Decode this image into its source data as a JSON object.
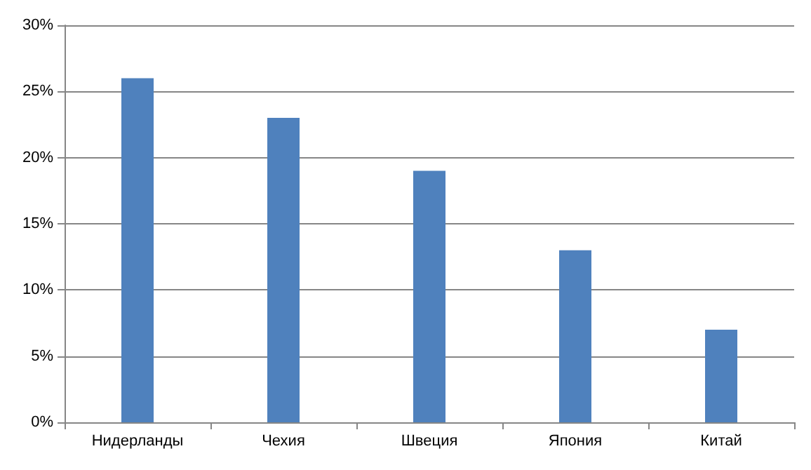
{
  "chart_data": {
    "type": "bar",
    "categories": [
      "Нидерланды",
      "Чехия",
      "Швеция",
      "Япония",
      "Китай"
    ],
    "values": [
      26,
      23,
      19,
      13,
      7
    ],
    "color": "#4f81bd",
    "ylim": [
      0,
      30
    ],
    "yticks": [
      {
        "value": 0,
        "label": "0%"
      },
      {
        "value": 5,
        "label": "5%"
      },
      {
        "value": 10,
        "label": "10%"
      },
      {
        "value": 15,
        "label": "15%"
      },
      {
        "value": 20,
        "label": "20%"
      },
      {
        "value": 25,
        "label": "25%"
      },
      {
        "value": 30,
        "label": "30%"
      }
    ],
    "grid": "y"
  }
}
